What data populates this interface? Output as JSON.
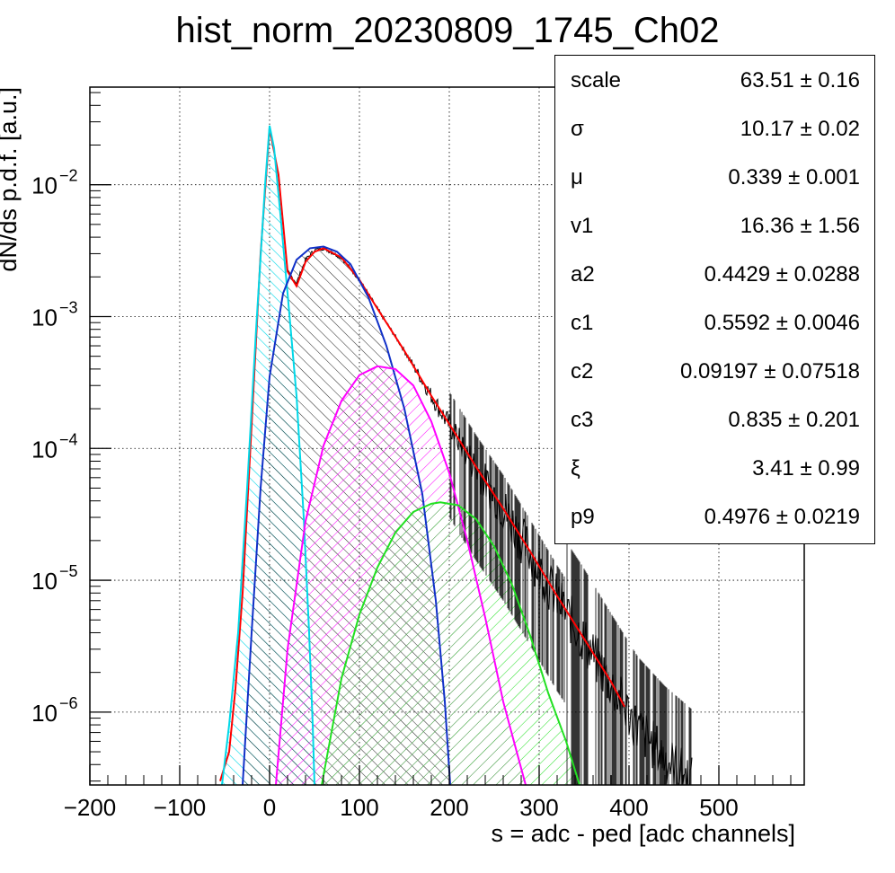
{
  "chart_data": {
    "type": "line",
    "title": "hist_norm_20230809_1745_Ch02",
    "xlabel": "s = adc - ped [adc channels]",
    "ylabel": "dN/ds p.d.f. [a.u.]",
    "xlim": [
      -200,
      595
    ],
    "ylog": true,
    "ylim": [
      2.8e-07,
      0.055
    ],
    "x_ticks": [
      {
        "value": -200,
        "label": "−200"
      },
      {
        "value": -100,
        "label": "−100"
      },
      {
        "value": 0,
        "label": "0"
      },
      {
        "value": 100,
        "label": "100"
      },
      {
        "value": 200,
        "label": "200"
      },
      {
        "value": 300,
        "label": "300"
      },
      {
        "value": 400,
        "label": "400"
      },
      {
        "value": 500,
        "label": "500"
      }
    ],
    "y_ticks": [
      {
        "value": 0.01,
        "base": "10",
        "exp": "−2"
      },
      {
        "value": 0.001,
        "base": "10",
        "exp": "−3"
      },
      {
        "value": 0.0001,
        "base": "10",
        "exp": "−4"
      },
      {
        "value": 1e-05,
        "base": "10",
        "exp": "−5"
      },
      {
        "value": 1e-06,
        "base": "10",
        "exp": "−6"
      }
    ],
    "grid": true,
    "series": [
      {
        "color": "#000000",
        "style": "histogram",
        "points": [
          [
            -55,
            3e-07
          ],
          [
            -45,
            5e-07
          ],
          [
            -38,
            1.5e-06
          ],
          [
            -30,
            8e-06
          ],
          [
            -20,
            0.00015
          ],
          [
            -10,
            0.003
          ],
          [
            0,
            0.027
          ],
          [
            10,
            0.012
          ],
          [
            20,
            0.0022
          ],
          [
            30,
            0.0018
          ],
          [
            40,
            0.0027
          ],
          [
            50,
            0.0032
          ],
          [
            60,
            0.0033
          ],
          [
            80,
            0.0028
          ],
          [
            100,
            0.0019
          ],
          [
            120,
            0.00115
          ],
          [
            150,
            0.00055
          ],
          [
            180,
            0.00025
          ],
          [
            200,
            0.00015
          ],
          [
            230,
            7e-05
          ],
          [
            260,
            3.5e-05
          ],
          [
            290,
            1.6e-05
          ],
          [
            320,
            7.2e-06
          ],
          [
            350,
            3.5e-06
          ],
          [
            380,
            1.6e-06
          ],
          [
            410,
            7.5e-07
          ],
          [
            440,
            4.5e-07
          ],
          [
            470,
            3e-07
          ]
        ]
      },
      {
        "color": "#ff0000",
        "style": "fit",
        "points": [
          [
            -55,
            3e-07
          ],
          [
            -45,
            5e-07
          ],
          [
            -38,
            1.5e-06
          ],
          [
            -30,
            8e-06
          ],
          [
            -20,
            0.00015
          ],
          [
            -10,
            0.003
          ],
          [
            0,
            0.027
          ],
          [
            10,
            0.0118
          ],
          [
            20,
            0.0022
          ],
          [
            30,
            0.0017
          ],
          [
            40,
            0.0026
          ],
          [
            50,
            0.0031
          ],
          [
            60,
            0.0033
          ],
          [
            80,
            0.0028
          ],
          [
            100,
            0.0019
          ],
          [
            120,
            0.00115
          ],
          [
            150,
            0.00055
          ],
          [
            180,
            0.00025
          ],
          [
            200,
            0.000153
          ],
          [
            230,
            7.2e-05
          ],
          [
            260,
            3.5e-05
          ],
          [
            290,
            1.65e-05
          ],
          [
            320,
            7.6e-06
          ],
          [
            350,
            3.6e-06
          ],
          [
            380,
            1.7e-06
          ],
          [
            395,
            1.1e-06
          ]
        ]
      },
      {
        "color": "#00d8e8",
        "style": "component",
        "hatch": "hatch-cyan",
        "points": [
          [
            -53,
            2.8e-07
          ],
          [
            -45,
            8e-07
          ],
          [
            -35,
            4e-06
          ],
          [
            -25,
            5e-05
          ],
          [
            -15,
            0.0008
          ],
          [
            -5,
            0.01
          ],
          [
            0,
            0.028
          ],
          [
            5,
            0.019
          ],
          [
            12,
            0.006
          ],
          [
            20,
            0.0015
          ],
          [
            30,
            0.00025
          ],
          [
            38,
            3e-05
          ],
          [
            44,
            4e-06
          ],
          [
            48,
            8e-07
          ],
          [
            50,
            2.8e-07
          ]
        ]
      },
      {
        "color": "#1030c8",
        "style": "component",
        "hatch": "hatch-black",
        "points": [
          [
            -30,
            2.8e-07
          ],
          [
            -20,
            4e-06
          ],
          [
            -10,
            5e-05
          ],
          [
            0,
            0.00035
          ],
          [
            15,
            0.0015
          ],
          [
            30,
            0.0027
          ],
          [
            45,
            0.0033
          ],
          [
            60,
            0.0034
          ],
          [
            75,
            0.0031
          ],
          [
            90,
            0.0025
          ],
          [
            110,
            0.0014
          ],
          [
            130,
            0.0006
          ],
          [
            150,
            0.0002
          ],
          [
            170,
            4.5e-05
          ],
          [
            185,
            7e-06
          ],
          [
            195,
            1.2e-06
          ],
          [
            201,
            2.8e-07
          ]
        ]
      },
      {
        "color": "#ff00ff",
        "style": "component",
        "hatch": "hatch-magenta",
        "points": [
          [
            7,
            2.8e-07
          ],
          [
            20,
            3e-06
          ],
          [
            40,
            2.8e-05
          ],
          [
            60,
            0.000105
          ],
          [
            80,
            0.00023
          ],
          [
            100,
            0.00036
          ],
          [
            120,
            0.00042
          ],
          [
            140,
            0.0004
          ],
          [
            160,
            0.0003
          ],
          [
            180,
            0.00016
          ],
          [
            200,
            6.5e-05
          ],
          [
            220,
            2e-05
          ],
          [
            240,
            5.2e-06
          ],
          [
            260,
            1.2e-06
          ],
          [
            275,
            5e-07
          ],
          [
            285,
            2.8e-07
          ]
        ]
      },
      {
        "color": "#22e022",
        "style": "component",
        "hatch": "hatch-green",
        "points": [
          [
            58,
            2.8e-07
          ],
          [
            80,
            1.8e-06
          ],
          [
            100,
            5.5e-06
          ],
          [
            120,
            1.25e-05
          ],
          [
            140,
            2.3e-05
          ],
          [
            160,
            3.3e-05
          ],
          [
            180,
            3.8e-05
          ],
          [
            190,
            3.9e-05
          ],
          [
            210,
            3.7e-05
          ],
          [
            230,
            2.9e-05
          ],
          [
            250,
            1.8e-05
          ],
          [
            270,
            9.2e-06
          ],
          [
            290,
            3.8e-06
          ],
          [
            310,
            1.4e-06
          ],
          [
            330,
            6e-07
          ],
          [
            345,
            2.8e-07
          ]
        ]
      }
    ]
  },
  "stats": [
    {
      "name": "scale",
      "value": "63.51 ± 0.16"
    },
    {
      "name": "σ",
      "value": "10.17 ± 0.02"
    },
    {
      "name": "μ",
      "value": "0.339 ± 0.001"
    },
    {
      "name": "v1",
      "value": "16.36 ± 1.56"
    },
    {
      "name": "a2",
      "value": "0.4429 ± 0.0288"
    },
    {
      "name": "c1",
      "value": "0.5592 ± 0.0046"
    },
    {
      "name": "c2",
      "value": "0.09197 ± 0.07518"
    },
    {
      "name": "c3",
      "value": "0.835 ± 0.201"
    },
    {
      "name": "ξ",
      "value": "3.41 ± 0.99"
    },
    {
      "name": "p9",
      "value": "0.4976 ± 0.0219"
    }
  ]
}
